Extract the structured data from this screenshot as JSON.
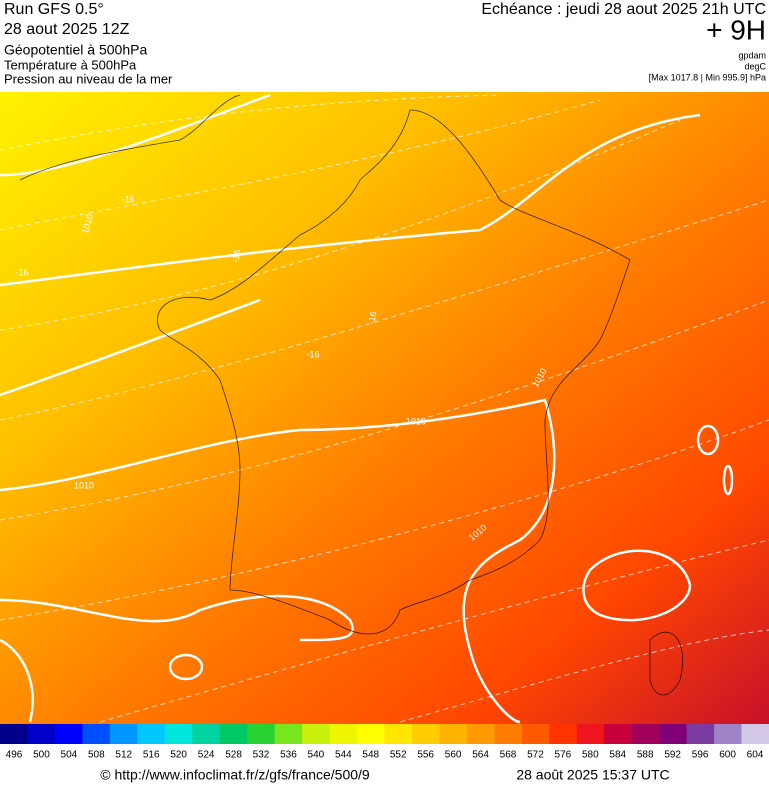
{
  "header": {
    "run": "Run GFS 0.5°",
    "run_date": "28 aout 2025 12Z",
    "layer1": "Géopotentiel à 500hPa",
    "layer2": "Température à 500hPa",
    "layer3": "Pression au niveau de la mer",
    "valid": "Echéance : jeudi 28 aout 2025 21h UTC",
    "lead": "+ 9H",
    "unit1": "gpdam",
    "unit2": "degC",
    "pressure_range": "[Max 1017.8 | Min 995.9] hPa"
  },
  "map": {
    "contour_labels": [
      "1010",
      "-16",
      "-16",
      "-16",
      "-16",
      "-16",
      "1010",
      "1010",
      "1010",
      "1010"
    ]
  },
  "colorbar": {
    "labels": [
      496,
      500,
      504,
      508,
      512,
      516,
      520,
      524,
      528,
      532,
      536,
      540,
      544,
      548,
      552,
      556,
      560,
      564,
      568,
      572,
      576,
      580,
      584,
      588,
      592,
      596,
      600,
      604
    ],
    "colors": [
      "#00008c",
      "#0000c8",
      "#0000ff",
      "#0050ff",
      "#0096ff",
      "#00c8ff",
      "#00e6dc",
      "#00d2a0",
      "#00c864",
      "#28d232",
      "#78e61e",
      "#c8f00a",
      "#f0f500",
      "#ffff00",
      "#ffe600",
      "#ffcd00",
      "#ffb400",
      "#ff9b00",
      "#ff7d00",
      "#ff5a00",
      "#ff3200",
      "#f0141e",
      "#c8003c",
      "#a0005a",
      "#800078",
      "#7a3ca0",
      "#a082c8",
      "#d2c8e6"
    ]
  },
  "footer": {
    "source": "© http://www.infoclimat.fr/z/gfs/france/500/9",
    "generated": "28 août 2025 15:37 UTC"
  }
}
